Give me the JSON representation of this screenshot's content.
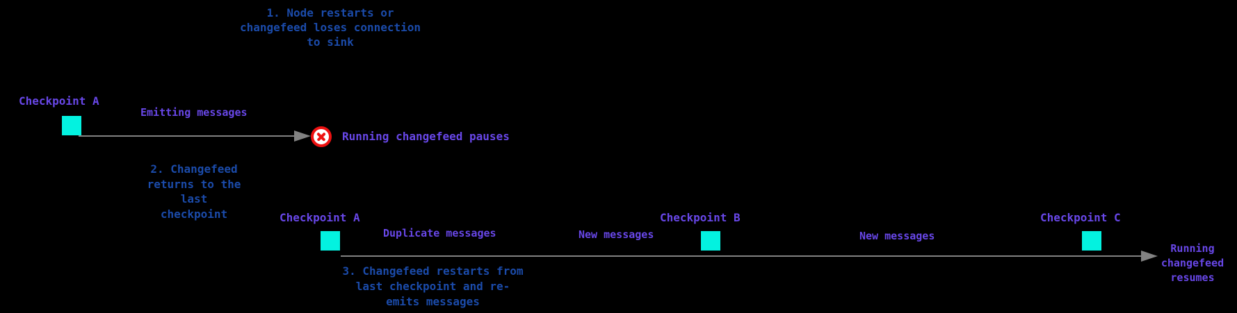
{
  "colors": {
    "background": "#000000",
    "note_text": "#1b4baa",
    "label_text": "#6847e8",
    "checkpoint_marker": "#03f2e0",
    "arrow": "#828282",
    "pause_ring": "#ee1111"
  },
  "notes": {
    "step1": {
      "line1": "1. Node restarts or",
      "line2": "changefeed loses connection",
      "line3": "to sink"
    },
    "step2": {
      "line1": "2. Changefeed",
      "line2": "returns to the",
      "line3": "last",
      "line4": "checkpoint"
    },
    "step3": {
      "line1": "3. Changefeed restarts from",
      "line2": "last checkpoint and re-",
      "line3": "emits messages"
    }
  },
  "timeline_top": {
    "checkpoint_a_label": "Checkpoint A",
    "emitting_label": "Emitting messages",
    "pause_icon": "circle-x-icon",
    "pause_label": "Running changefeed pauses"
  },
  "timeline_bottom": {
    "checkpoint_a_label": "Checkpoint A",
    "duplicate_label": "Duplicate messages",
    "new_label_1": "New messages",
    "checkpoint_b_label": "Checkpoint B",
    "new_label_2": "New messages",
    "checkpoint_c_label": "Checkpoint C",
    "resume_line1": "Running",
    "resume_line2": "changefeed",
    "resume_line3": "resumes"
  }
}
